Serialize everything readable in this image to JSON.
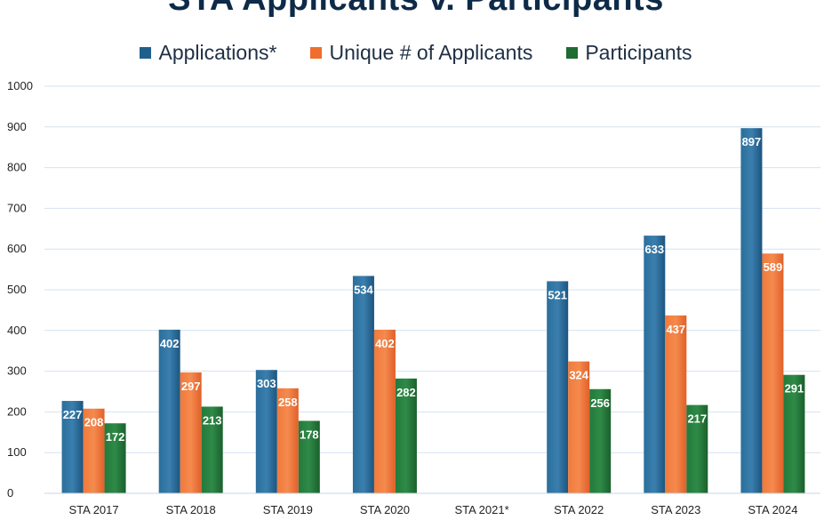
{
  "chart_data": {
    "type": "bar",
    "title": "STA Applicants v. Participants",
    "xlabel": "",
    "ylabel": "",
    "ylim": [
      0,
      1000
    ],
    "yticks": [
      0,
      100,
      200,
      300,
      400,
      500,
      600,
      700,
      800,
      900,
      1000
    ],
    "grid": true,
    "legend_position": "top",
    "categories": [
      "STA 2017",
      "STA 2018",
      "STA 2019",
      "STA 2020",
      "STA 2021*",
      "STA 2022",
      "STA 2023",
      "STA 2024"
    ],
    "series": [
      {
        "name": "Applications*",
        "color": "#1f5f8b",
        "values": [
          227,
          402,
          303,
          534,
          null,
          521,
          633,
          897
        ]
      },
      {
        "name": "Unique # of Applicants",
        "color": "#ef6e2e",
        "values": [
          208,
          297,
          258,
          402,
          null,
          324,
          437,
          589
        ]
      },
      {
        "name": "Participants",
        "color": "#1e6b33",
        "values": [
          172,
          213,
          178,
          282,
          null,
          256,
          217,
          291
        ]
      }
    ]
  }
}
